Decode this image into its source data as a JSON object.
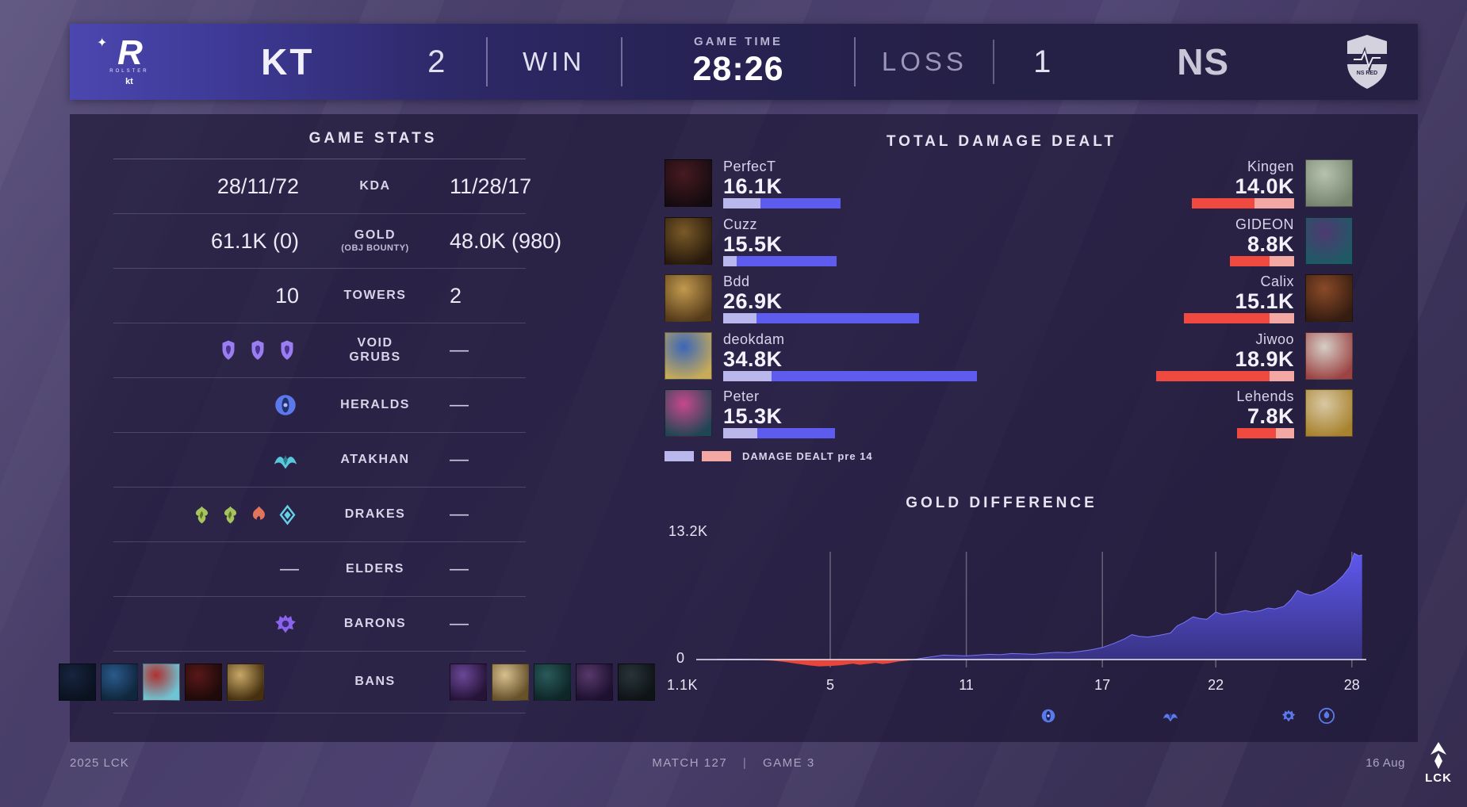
{
  "scoreboard": {
    "left_team": {
      "name": "KT",
      "score": "2",
      "result": "WIN",
      "logo_letter": "R",
      "logo_sub": "ROLSTER",
      "logo_sub2": "kt"
    },
    "game_time_label": "GAME TIME",
    "game_time": "28:26",
    "right_team": {
      "name": "NS",
      "score": "1",
      "result": "LOSS"
    }
  },
  "game_stats": {
    "title": "GAME STATS",
    "rows": [
      {
        "label": "KDA",
        "left": "28/11/72",
        "right": "11/28/17"
      },
      {
        "label": "GOLD",
        "sublabel": "(OBJ BOUNTY)",
        "left": "61.1K (0)",
        "right": "48.0K (980)"
      },
      {
        "label": "TOWERS",
        "left": "10",
        "right": "2"
      },
      {
        "label": "VOID GRUBS",
        "left_icons": [
          "void-grub",
          "void-grub",
          "void-grub"
        ],
        "right": "—"
      },
      {
        "label": "HERALDS",
        "left_icons": [
          "herald"
        ],
        "right": "—"
      },
      {
        "label": "ATAKHAN",
        "left_icons": [
          "atakhan"
        ],
        "right": "—"
      },
      {
        "label": "DRAKES",
        "left_icons": [
          "chemtech-drake",
          "chemtech-drake",
          "infernal-drake",
          "hextech-drake"
        ],
        "right": "—"
      },
      {
        "label": "ELDERS",
        "left": "—",
        "right": "—"
      },
      {
        "label": "BARONS",
        "left_icons": [
          "baron"
        ],
        "right": "—"
      },
      {
        "label": "BANS",
        "bans": true
      }
    ],
    "bans": {
      "left": [
        [
          "#16243e",
          "#0a1220"
        ],
        [
          "#2a5a8c",
          "#10263c"
        ],
        [
          "#b03030",
          "#6ec4d4"
        ],
        [
          "#581818",
          "#1e0a0a"
        ],
        [
          "#c8a868",
          "#46300f"
        ]
      ],
      "right": [
        [
          "#6a4898",
          "#261338"
        ],
        [
          "#d8c090",
          "#66512a"
        ],
        [
          "#2a5a5a",
          "#0e2628"
        ],
        [
          "#57396a",
          "#1d1030"
        ],
        [
          "#28343a",
          "#0e1316"
        ]
      ]
    }
  },
  "chart_data": [
    {
      "type": "bar",
      "title": "TOTAL DAMAGE DEALT",
      "unit": "K",
      "legend": "DAMAGE DEALT pre 14",
      "legend_position": "bottom-left",
      "series": [
        {
          "team": "KT",
          "color": "#5d5cee",
          "pre14_color": "#b9b7ec",
          "align": "left",
          "players": [
            {
              "name": "PerfecT",
              "label": "16.1K",
              "total": 16.1,
              "pre14": 5.1,
              "portrait": [
                "#461a20",
                "#140b10"
              ]
            },
            {
              "name": "Cuzz",
              "label": "15.5K",
              "total": 15.5,
              "pre14": 1.9,
              "portrait": [
                "#7a5a28",
                "#27190c"
              ]
            },
            {
              "name": "Bdd",
              "label": "26.9K",
              "total": 26.9,
              "pre14": 4.6,
              "portrait": [
                "#c29a4e",
                "#543a1a"
              ]
            },
            {
              "name": "deokdam",
              "label": "34.8K",
              "total": 34.8,
              "pre14": 6.6,
              "portrait": [
                "#3a66b8",
                "#c7ab58"
              ]
            },
            {
              "name": "Peter",
              "label": "15.3K",
              "total": 15.3,
              "pre14": 4.7,
              "portrait": [
                "#c6488c",
                "#1f4654"
              ]
            }
          ]
        },
        {
          "team": "NS",
          "color": "#f04a40",
          "pre14_color": "#f4a8a4",
          "align": "right",
          "players": [
            {
              "name": "Kingen",
              "label": "14.0K",
              "total": 14.0,
              "pre14": 5.4,
              "portrait": [
                "#b6c2ae",
                "#76846f"
              ]
            },
            {
              "name": "GIDEON",
              "label": "8.8K",
              "total": 8.8,
              "pre14": 3.4,
              "portrait": [
                "#4e3a70",
                "#1e5a66"
              ]
            },
            {
              "name": "Calix",
              "label": "15.1K",
              "total": 15.1,
              "pre14": 3.4,
              "portrait": [
                "#8a4a28",
                "#341c10"
              ]
            },
            {
              "name": "Jiwoo",
              "label": "18.9K",
              "total": 18.9,
              "pre14": 3.4,
              "portrait": [
                "#d6cec6",
                "#9c4444"
              ]
            },
            {
              "name": "Lehends",
              "label": "7.8K",
              "total": 7.8,
              "pre14": 2.5,
              "portrait": [
                "#d8c8a4",
                "#a8822e"
              ]
            }
          ]
        }
      ]
    },
    {
      "type": "area",
      "title": "GOLD DIFFERENCE",
      "ylim": [
        -1.1,
        13.2
      ],
      "y_top_label": "13.2K",
      "y_zero_label": "0",
      "y_bottom_label": "1.1K",
      "xticks": [
        5,
        11,
        17,
        22,
        28
      ],
      "grid": "vertical",
      "positive_color": "#4a46c6",
      "negative_color": "#e8463c",
      "x": [
        0,
        1,
        2,
        2.5,
        3,
        3.5,
        4,
        4.5,
        5,
        5.5,
        6,
        6.3,
        6.6,
        7,
        7.3,
        7.6,
        8,
        8.5,
        9,
        9.5,
        10,
        10.5,
        11,
        11.5,
        12,
        12.5,
        13,
        13.5,
        14,
        14.5,
        15,
        15.5,
        16,
        16.5,
        17,
        17.5,
        18,
        18.3,
        18.6,
        19,
        19.5,
        20,
        20.3,
        20.6,
        21,
        21.3,
        21.6,
        22,
        22.3,
        22.6,
        23,
        23.3,
        23.6,
        24,
        24.3,
        24.6,
        25,
        25.3,
        25.6,
        25.9,
        26.2,
        26.5,
        26.8,
        27,
        27.3,
        27.6,
        27.9,
        28.1,
        28.3,
        28.45
      ],
      "y": [
        0,
        0.05,
        -0.05,
        -0.15,
        -0.3,
        -0.5,
        -0.7,
        -0.85,
        -0.8,
        -0.7,
        -0.5,
        -0.65,
        -0.55,
        -0.4,
        -0.55,
        -0.45,
        -0.25,
        -0.1,
        0.15,
        0.35,
        0.55,
        0.5,
        0.45,
        0.55,
        0.65,
        0.6,
        0.75,
        0.7,
        0.65,
        0.8,
        0.9,
        0.85,
        1.0,
        1.2,
        1.5,
        2.0,
        2.6,
        3.1,
        2.9,
        2.8,
        3.0,
        3.3,
        4.2,
        4.6,
        5.3,
        5.1,
        5.0,
        5.9,
        5.6,
        5.7,
        5.9,
        6.1,
        5.9,
        6.1,
        6.4,
        6.3,
        6.6,
        7.4,
        8.6,
        8.2,
        8.0,
        8.3,
        8.6,
        9.0,
        9.6,
        10.4,
        11.5,
        13.2,
        12.9,
        13.0
      ],
      "events": [
        {
          "minute": 14.6,
          "icon": "herald"
        },
        {
          "minute": 20.0,
          "icon": "atakhan"
        },
        {
          "minute": 25.2,
          "icon": "baron"
        },
        {
          "minute": 26.9,
          "icon": "drake"
        }
      ]
    }
  ],
  "footer": {
    "left": "2025 LCK",
    "match": "MATCH 127",
    "separator": "|",
    "game": "GAME 3",
    "date": "16 Aug",
    "logo": "LCK"
  }
}
